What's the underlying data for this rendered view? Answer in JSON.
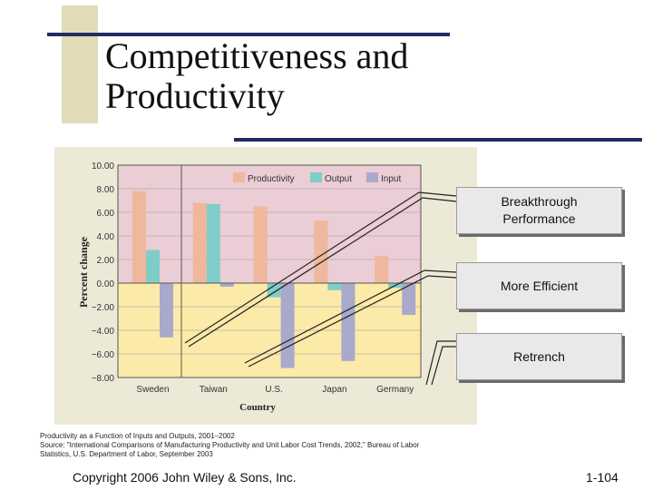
{
  "slide": {
    "title_lines": [
      "Competitiveness and",
      "Productivity"
    ],
    "callouts": [
      "Breakthrough Performance",
      "More Efficient",
      "Retrench"
    ],
    "caption_lines": [
      "Productivity as a Function of Inputs and Outputs, 2001–2002",
      "Source: \"International Comparisons of Manufacturing Productivity and Unit Labor Cost Trends, 2002,\" Bureau of Labor",
      "Statistics, U.S. Department of Labor, September 2003"
    ],
    "footer_left": "Copyright 2006 John Wiley & Sons, Inc.",
    "footer_right": "1-104"
  },
  "colors": {
    "productivity": "#efb79c",
    "output": "#7fcdc9",
    "input": "#a9a9cc",
    "positive_region": "#ebcdd5",
    "negative_region": "#fbeaa8",
    "accent_bar": "#1f2d63",
    "tan_block": "#e1dcb7"
  },
  "chart_data": {
    "type": "bar",
    "categories": [
      "Sweden",
      "Taiwan",
      "U.S.",
      "Japan",
      "Germany"
    ],
    "series": [
      {
        "name": "Productivity",
        "values": [
          7.8,
          6.8,
          6.5,
          5.3,
          2.3
        ]
      },
      {
        "name": "Output",
        "values": [
          2.8,
          6.7,
          -1.2,
          -0.6,
          -0.4
        ]
      },
      {
        "name": "Input",
        "values": [
          -4.6,
          -0.3,
          -7.2,
          -6.6,
          -2.7
        ]
      }
    ],
    "ylabel": "Percent change",
    "xlabel": "Country",
    "ylim": [
      -8,
      10
    ],
    "yticks": [
      "10.00",
      "8.00",
      "6.00",
      "4.00",
      "2.00",
      "0.00",
      "−2.00",
      "−4.00",
      "−6.00",
      "−8.00"
    ],
    "ytick_values": [
      10,
      8,
      6,
      4,
      2,
      0,
      -2,
      -4,
      -6,
      -8
    ],
    "legend_position": "top",
    "grid": true
  }
}
